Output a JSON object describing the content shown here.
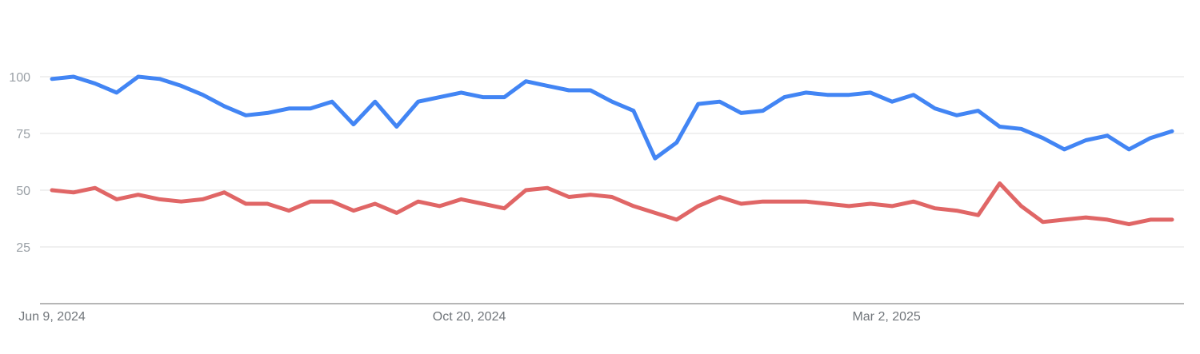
{
  "chart_data": {
    "type": "line",
    "title": "",
    "xlabel": "",
    "ylabel": "",
    "ylim": [
      0,
      125
    ],
    "y_ticks": [
      25,
      50,
      75,
      100
    ],
    "grid": true,
    "legend": "none",
    "x_start": "Jun 9, 2024",
    "x_end": "Jun 1, 2025",
    "x_tick_labels": [
      "Jun 9, 2024",
      "Oct 20, 2024",
      "Mar 2, 2025"
    ],
    "series": [
      {
        "color": "#4285f4",
        "values": [
          99,
          100,
          97,
          93,
          100,
          99,
          96,
          92,
          87,
          83,
          84,
          86,
          86,
          89,
          79,
          89,
          78,
          89,
          91,
          93,
          91,
          91,
          98,
          96,
          94,
          94,
          89,
          85,
          64,
          71,
          88,
          89,
          84,
          85,
          91,
          93,
          92,
          92,
          93,
          89,
          92,
          86,
          83,
          85,
          78,
          77,
          73,
          68,
          72,
          74,
          68,
          73,
          76
        ]
      },
      {
        "color": "#e06666",
        "values": [
          50,
          49,
          51,
          46,
          48,
          46,
          45,
          46,
          49,
          44,
          44,
          41,
          45,
          45,
          41,
          44,
          40,
          45,
          43,
          46,
          44,
          42,
          50,
          51,
          47,
          48,
          47,
          43,
          40,
          37,
          43,
          47,
          44,
          45,
          45,
          45,
          44,
          43,
          44,
          43,
          45,
          42,
          41,
          39,
          53,
          43,
          36,
          37,
          38,
          37,
          35,
          37,
          37
        ]
      }
    ]
  }
}
